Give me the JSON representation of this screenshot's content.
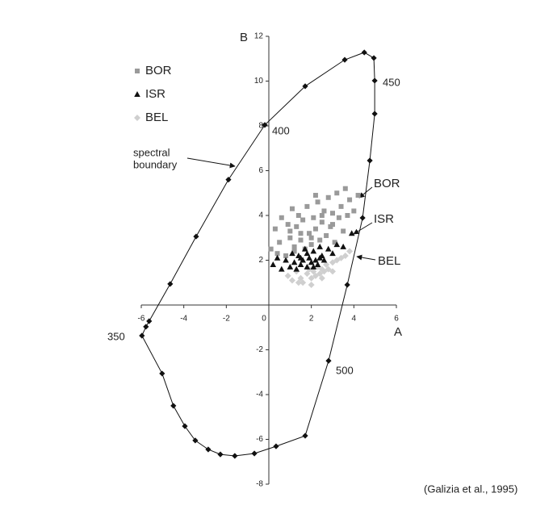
{
  "chart_data": {
    "type": "scatter",
    "x_label": "A",
    "y_label": "B",
    "xlim": [
      -6,
      6
    ],
    "ylim": [
      -8,
      12
    ],
    "xticks": [
      -6,
      -4,
      -2,
      0,
      2,
      4,
      6
    ],
    "yticks": [
      -8,
      -6,
      -4,
      -2,
      2,
      4,
      6,
      8,
      10,
      12
    ],
    "series": [
      {
        "name": "BOR",
        "color": "#9a9a9a",
        "marker": "square",
        "x": [
          0.1,
          0.3,
          0.5,
          0.6,
          0.8,
          0.9,
          1.0,
          1.1,
          1.2,
          1.3,
          1.4,
          1.5,
          1.6,
          1.7,
          1.8,
          1.9,
          2.0,
          2.1,
          2.2,
          2.3,
          2.4,
          2.5,
          2.6,
          2.7,
          2.8,
          2.9,
          3.0,
          3.1,
          3.2,
          3.3,
          3.4,
          3.5,
          3.6,
          3.7,
          3.8,
          4.0,
          4.2,
          0.4,
          1.0,
          1.5,
          2.0,
          2.5,
          3.0,
          1.2,
          2.2
        ],
        "y": [
          2.5,
          3.4,
          2.8,
          3.9,
          2.2,
          3.6,
          3.0,
          4.3,
          2.6,
          3.5,
          4.0,
          2.9,
          3.8,
          2.5,
          4.4,
          3.2,
          2.7,
          3.9,
          3.4,
          4.6,
          2.9,
          3.7,
          4.2,
          3.1,
          4.8,
          3.5,
          4.1,
          2.8,
          5.0,
          3.9,
          4.4,
          3.3,
          5.2,
          4.0,
          4.7,
          4.2,
          4.9,
          2.3,
          3.3,
          3.2,
          3.0,
          4.0,
          3.6,
          2.4,
          4.9
        ]
      },
      {
        "name": "ISR",
        "color": "#111111",
        "marker": "triangle",
        "x": [
          0.2,
          0.4,
          0.6,
          0.8,
          1.0,
          1.1,
          1.2,
          1.3,
          1.4,
          1.5,
          1.6,
          1.7,
          1.8,
          1.9,
          2.0,
          2.1,
          2.2,
          2.3,
          2.4,
          2.5,
          2.6,
          2.8,
          3.0,
          3.2,
          3.5,
          3.9,
          1.5,
          1.8,
          2.1,
          2.4
        ],
        "y": [
          1.8,
          2.1,
          1.6,
          2.0,
          1.7,
          2.3,
          1.9,
          1.6,
          2.2,
          1.8,
          2.0,
          2.5,
          1.7,
          2.1,
          1.9,
          2.4,
          2.0,
          1.8,
          2.6,
          2.2,
          2.0,
          2.5,
          2.3,
          2.7,
          2.6,
          3.2,
          2.1,
          2.3,
          1.7,
          2.1
        ]
      },
      {
        "name": "BEL",
        "color": "#cfcfcf",
        "marker": "diamond",
        "x": [
          0.9,
          1.1,
          1.3,
          1.5,
          1.6,
          1.8,
          1.9,
          2.0,
          2.1,
          2.2,
          2.3,
          2.4,
          2.5,
          2.6,
          2.7,
          2.8,
          3.0,
          3.2,
          3.4,
          3.6,
          3.8,
          1.4,
          2.0,
          2.5,
          3.0
        ],
        "y": [
          1.3,
          1.1,
          1.5,
          1.2,
          1.0,
          1.4,
          1.6,
          1.2,
          1.5,
          1.3,
          1.7,
          1.4,
          1.6,
          1.5,
          1.8,
          1.6,
          1.9,
          2.0,
          2.1,
          2.2,
          2.4,
          1.0,
          0.9,
          1.2,
          1.5
        ]
      }
    ],
    "boundary": {
      "color": "#111111",
      "x": [
        -5.97,
        -5.78,
        -5.63,
        -4.64,
        -3.42,
        -1.9,
        -0.19,
        1.71,
        3.57,
        4.49,
        4.94,
        4.98,
        4.98,
        4.75,
        4.41,
        3.69,
        2.81,
        1.71,
        0.34,
        -0.68,
        -1.6,
        -2.28,
        -2.85,
        -3.46,
        -3.95,
        -4.49,
        -5.02
      ],
      "y": [
        -1.37,
        -0.97,
        -0.72,
        0.94,
        3.06,
        5.6,
        8.04,
        9.77,
        10.95,
        11.28,
        11.03,
        10.02,
        8.54,
        6.45,
        3.89,
        0.9,
        -2.49,
        -5.84,
        -6.31,
        -6.63,
        -6.74,
        -6.67,
        -6.45,
        -6.05,
        -5.41,
        -4.5,
        -3.06
      ]
    },
    "boundary_label": [
      "spectral",
      "boundary"
    ],
    "wavelength_labels": [
      "350",
      "400",
      "450",
      "500"
    ],
    "citation": "(Galizia et al., 1995)"
  }
}
